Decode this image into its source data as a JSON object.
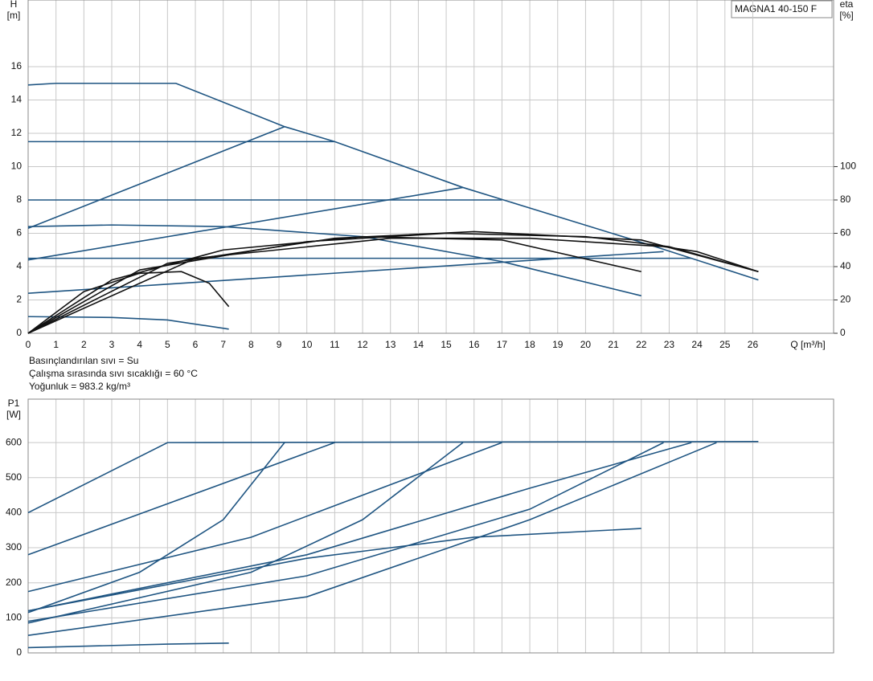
{
  "title": "MAGNA1 40-150 F",
  "notes": [
    "Basınçlandırılan sıvı = Su",
    "Çalışma sırasında sıvı sıcaklığı = 60 °C",
    "Yoğunluk = 983.2 kg/m³"
  ],
  "chart_data": [
    {
      "type": "line",
      "y_label": "H",
      "y_unit": "[m]",
      "y2_label": "eta",
      "y2_unit": "[%]",
      "x_label": "Q [m³/h]",
      "xlim": [
        0,
        28.9
      ],
      "xticks": [
        0,
        1,
        2,
        3,
        4,
        5,
        6,
        7,
        8,
        9,
        10,
        11,
        12,
        13,
        14,
        15,
        16,
        17,
        18,
        19,
        20,
        21,
        22,
        23,
        24,
        25,
        26
      ],
      "ylim": [
        0,
        20
      ],
      "yticks": [
        0,
        2,
        4,
        6,
        8,
        10,
        12,
        14,
        16
      ],
      "y2lim": [
        0,
        200
      ],
      "y2ticks": [
        0,
        20,
        40,
        60,
        80,
        100
      ],
      "grid": true,
      "xtick_labels": true,
      "series": [
        {
          "color": "#1f5582",
          "x": [
            0,
            1,
            5.3,
            9.2,
            11,
            15.6,
            22.5,
            26.2
          ],
          "values": [
            14.9,
            15,
            15,
            12.4,
            11.5,
            8.75,
            5.2,
            3.2
          ]
        },
        {
          "color": "#1f5582",
          "x": [
            0,
            11
          ],
          "values": [
            11.5,
            11.5
          ]
        },
        {
          "color": "#1f5582",
          "x": [
            0,
            17
          ],
          "values": [
            8,
            8
          ]
        },
        {
          "color": "#1f5582",
          "x": [
            0,
            23.8
          ],
          "values": [
            4.5,
            4.5
          ]
        },
        {
          "color": "#1f5582",
          "x": [
            0,
            9.2
          ],
          "values": [
            6.3,
            12.4
          ]
        },
        {
          "color": "#1f5582",
          "x": [
            0,
            15.6
          ],
          "values": [
            4.4,
            8.75
          ]
        },
        {
          "color": "#1f5582",
          "x": [
            0,
            22.8
          ],
          "values": [
            2.4,
            4.9
          ]
        },
        {
          "color": "#1f5582",
          "x": [
            0,
            3,
            7,
            12,
            17,
            22
          ],
          "values": [
            6.4,
            6.5,
            6.4,
            5.8,
            4.3,
            2.25
          ]
        },
        {
          "color": "#1f5582",
          "x": [
            0,
            3,
            5,
            7.2
          ],
          "values": [
            1,
            0.95,
            0.8,
            0.25
          ]
        },
        {
          "color": "#111111",
          "axis": "y2",
          "x": [
            0,
            2,
            4,
            5.5,
            6.5,
            7.2
          ],
          "values": [
            0,
            25,
            36,
            37,
            30,
            16
          ]
        },
        {
          "color": "#111111",
          "axis": "y2",
          "x": [
            0,
            3,
            7,
            12,
            17,
            22
          ],
          "values": [
            0,
            32,
            50,
            58,
            56,
            37
          ]
        },
        {
          "color": "#111111",
          "axis": "y2",
          "x": [
            0,
            4,
            10,
            15,
            20,
            23,
            26.2
          ],
          "values": [
            0,
            38,
            55,
            60,
            58,
            52,
            37
          ]
        },
        {
          "color": "#111111",
          "axis": "y2",
          "x": [
            0,
            5,
            11,
            16,
            22,
            26.2
          ],
          "values": [
            0,
            42,
            57,
            61,
            56,
            37
          ]
        },
        {
          "color": "#111111",
          "axis": "y2",
          "x": [
            0,
            6,
            13,
            18,
            22.8,
            24,
            26.2
          ],
          "values": [
            0,
            45,
            57,
            57,
            52,
            49,
            37
          ]
        }
      ]
    },
    {
      "type": "line",
      "y_label": "P1",
      "y_unit": "[W]",
      "xlim": [
        0,
        28.9
      ],
      "xticks": [
        0,
        1,
        2,
        3,
        4,
        5,
        6,
        7,
        8,
        9,
        10,
        11,
        12,
        13,
        14,
        15,
        16,
        17,
        18,
        19,
        20,
        21,
        22,
        23,
        24,
        25,
        26
      ],
      "ylim": [
        0,
        724
      ],
      "yticks": [
        0,
        100,
        200,
        300,
        400,
        500,
        600
      ],
      "grid": true,
      "xtick_labels": false,
      "series": [
        {
          "color": "#1f5582",
          "x": [
            0,
            5,
            26.2
          ],
          "values": [
            400,
            600,
            603
          ]
        },
        {
          "color": "#1f5582",
          "x": [
            0,
            11
          ],
          "values": [
            280,
            600
          ]
        },
        {
          "color": "#1f5582",
          "x": [
            0,
            4,
            7,
            9.2
          ],
          "values": [
            115,
            230,
            380,
            600
          ]
        },
        {
          "color": "#1f5582",
          "x": [
            0,
            8,
            17
          ],
          "values": [
            175,
            330,
            600
          ]
        },
        {
          "color": "#1f5582",
          "x": [
            0,
            8,
            12,
            15.6
          ],
          "values": [
            85,
            230,
            380,
            600
          ]
        },
        {
          "color": "#1f5582",
          "x": [
            0,
            10,
            18,
            23.8
          ],
          "values": [
            120,
            280,
            470,
            600
          ]
        },
        {
          "color": "#1f5582",
          "x": [
            0,
            10,
            18,
            22.8
          ],
          "values": [
            90,
            220,
            410,
            600
          ]
        },
        {
          "color": "#1f5582",
          "x": [
            0,
            10,
            18,
            24.7
          ],
          "values": [
            50,
            160,
            380,
            600
          ]
        },
        {
          "color": "#1f5582",
          "x": [
            0,
            10,
            16,
            22
          ],
          "values": [
            120,
            270,
            330,
            355
          ]
        },
        {
          "color": "#1f5582",
          "x": [
            0,
            5,
            7.2
          ],
          "values": [
            15,
            25,
            28
          ]
        }
      ]
    }
  ]
}
